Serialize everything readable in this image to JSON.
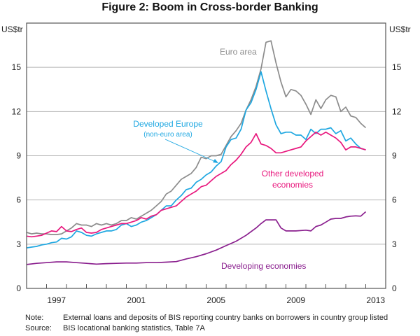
{
  "chart_data": {
    "type": "line",
    "title": "Figure 2: Boom in Cross-border Banking",
    "xlabel": "",
    "ylabel_left": "US$tr",
    "ylabel_right": "US$tr",
    "xlim": [
      1996,
      2014
    ],
    "ylim": [
      0,
      18
    ],
    "x_ticks": [
      "1997",
      "2001",
      "2005",
      "2009",
      "2013"
    ],
    "y_ticks": [
      "0",
      "3",
      "6",
      "9",
      "12",
      "15"
    ],
    "grid": true,
    "series": [
      {
        "name": "Euro area",
        "color": "#8c8c8c",
        "label": "Euro area",
        "x": [
          1996.0,
          1996.25,
          1996.5,
          1996.75,
          1997.0,
          1997.25,
          1997.5,
          1997.75,
          1998.0,
          1998.25,
          1998.5,
          1998.75,
          1999.0,
          1999.25,
          1999.5,
          1999.75,
          2000.0,
          2000.25,
          2000.5,
          2000.75,
          2001.0,
          2001.25,
          2001.5,
          2001.75,
          2002.0,
          2002.25,
          2002.5,
          2002.75,
          2003.0,
          2003.25,
          2003.5,
          2003.75,
          2004.0,
          2004.25,
          2004.5,
          2004.75,
          2005.0,
          2005.25,
          2005.5,
          2005.75,
          2006.0,
          2006.25,
          2006.5,
          2006.75,
          2007.0,
          2007.25,
          2007.5,
          2007.75,
          2008.0,
          2008.25,
          2008.5,
          2008.75,
          2009.0,
          2009.25,
          2009.5,
          2009.75,
          2010.0,
          2010.25,
          2010.5,
          2010.75,
          2011.0,
          2011.25,
          2011.5,
          2011.75,
          2012.0,
          2012.25,
          2012.5,
          2012.75,
          2013.0
        ],
        "values": [
          3.8,
          3.7,
          3.75,
          3.7,
          3.7,
          3.65,
          3.65,
          3.7,
          3.9,
          4.1,
          4.4,
          4.3,
          4.3,
          4.2,
          4.4,
          4.3,
          4.4,
          4.3,
          4.4,
          4.6,
          4.6,
          4.8,
          4.7,
          4.9,
          5.1,
          5.3,
          5.6,
          5.9,
          6.4,
          6.6,
          7.0,
          7.4,
          7.6,
          7.8,
          8.2,
          8.9,
          8.8,
          9.0,
          9.0,
          9.1,
          9.7,
          10.3,
          10.7,
          11.2,
          12.1,
          12.8,
          13.7,
          14.9,
          16.7,
          16.8,
          15.3,
          14.0,
          13.0,
          13.5,
          13.4,
          13.1,
          12.5,
          11.8,
          12.8,
          12.2,
          12.8,
          13.1,
          13.0,
          12.0,
          12.3,
          11.7,
          11.6,
          11.2,
          10.9
        ]
      },
      {
        "name": "Developed Europe (non-euro area)",
        "color": "#1ea7e1",
        "label": "Developed Europe",
        "sublabel": "(non-euro area)",
        "x": [
          1996.0,
          1996.25,
          1996.5,
          1996.75,
          1997.0,
          1997.25,
          1997.5,
          1997.75,
          1998.0,
          1998.25,
          1998.5,
          1998.75,
          1999.0,
          1999.25,
          1999.5,
          1999.75,
          2000.0,
          2000.25,
          2000.5,
          2000.75,
          2001.0,
          2001.25,
          2001.5,
          2001.75,
          2002.0,
          2002.25,
          2002.5,
          2002.75,
          2003.0,
          2003.25,
          2003.5,
          2003.75,
          2004.0,
          2004.25,
          2004.5,
          2004.75,
          2005.0,
          2005.25,
          2005.5,
          2005.75,
          2006.0,
          2006.25,
          2006.5,
          2006.75,
          2007.0,
          2007.25,
          2007.5,
          2007.75,
          2008.0,
          2008.25,
          2008.5,
          2008.75,
          2009.0,
          2009.25,
          2009.5,
          2009.75,
          2010.0,
          2010.25,
          2010.5,
          2010.75,
          2011.0,
          2011.25,
          2011.5,
          2011.75,
          2012.0,
          2012.25,
          2012.5,
          2012.75,
          2013.0
        ],
        "values": [
          2.75,
          2.8,
          2.85,
          2.95,
          3.0,
          3.1,
          3.15,
          3.4,
          3.35,
          3.5,
          3.9,
          3.8,
          3.6,
          3.55,
          3.7,
          3.8,
          3.9,
          3.9,
          4.0,
          4.3,
          4.4,
          4.2,
          4.3,
          4.5,
          4.6,
          4.8,
          5.0,
          5.3,
          5.6,
          5.6,
          6.0,
          6.3,
          6.7,
          6.8,
          7.2,
          7.4,
          7.7,
          7.9,
          8.3,
          8.6,
          9.6,
          10.1,
          10.2,
          10.8,
          12.1,
          12.6,
          13.5,
          14.7,
          13.4,
          12.2,
          11.1,
          10.5,
          10.6,
          10.6,
          10.4,
          10.4,
          10.1,
          10.8,
          10.5,
          10.8,
          10.8,
          10.9,
          10.5,
          10.7,
          10.0,
          10.2,
          9.8,
          9.5,
          9.4
        ]
      },
      {
        "name": "Other developed economies",
        "color": "#e8177d",
        "label": "Other developed",
        "sublabel": "economies",
        "x": [
          1996.0,
          1996.25,
          1996.5,
          1996.75,
          1997.0,
          1997.25,
          1997.5,
          1997.75,
          1998.0,
          1998.25,
          1998.5,
          1998.75,
          1999.0,
          1999.25,
          1999.5,
          1999.75,
          2000.0,
          2000.25,
          2000.5,
          2000.75,
          2001.0,
          2001.25,
          2001.5,
          2001.75,
          2002.0,
          2002.25,
          2002.5,
          2002.75,
          2003.0,
          2003.25,
          2003.5,
          2003.75,
          2004.0,
          2004.25,
          2004.5,
          2004.75,
          2005.0,
          2005.25,
          2005.5,
          2005.75,
          2006.0,
          2006.25,
          2006.5,
          2006.75,
          2007.0,
          2007.25,
          2007.5,
          2007.75,
          2008.0,
          2008.25,
          2008.5,
          2008.75,
          2009.0,
          2009.25,
          2009.5,
          2009.75,
          2010.0,
          2010.25,
          2010.5,
          2010.75,
          2011.0,
          2011.25,
          2011.5,
          2011.75,
          2012.0,
          2012.25,
          2012.5,
          2012.75,
          2013.0
        ],
        "values": [
          3.55,
          3.5,
          3.55,
          3.6,
          3.75,
          3.9,
          3.85,
          4.2,
          3.9,
          3.85,
          4.0,
          4.1,
          3.8,
          3.75,
          3.8,
          4.0,
          4.1,
          4.2,
          4.3,
          4.4,
          4.4,
          4.5,
          4.6,
          4.8,
          4.7,
          4.9,
          5.0,
          5.3,
          5.4,
          5.5,
          5.6,
          5.9,
          6.2,
          6.4,
          6.6,
          6.9,
          7.0,
          7.3,
          7.6,
          7.8,
          8.0,
          8.4,
          8.7,
          9.1,
          9.6,
          9.9,
          10.5,
          9.8,
          9.7,
          9.5,
          9.2,
          9.2,
          9.3,
          9.4,
          9.5,
          9.6,
          10.0,
          10.3,
          10.6,
          10.4,
          10.6,
          10.4,
          10.2,
          9.9,
          9.4,
          9.6,
          9.6,
          9.5,
          9.4
        ]
      },
      {
        "name": "Developing economies",
        "color": "#8a1f8e",
        "label": "Developing economies",
        "x": [
          1996.0,
          1996.5,
          1997.0,
          1997.5,
          1998.0,
          1998.5,
          1999.0,
          1999.5,
          2000.0,
          2000.5,
          2001.0,
          2001.5,
          2002.0,
          2002.5,
          2003.0,
          2003.5,
          2004.0,
          2004.5,
          2005.0,
          2005.5,
          2006.0,
          2006.5,
          2007.0,
          2007.25,
          2007.5,
          2007.75,
          2008.0,
          2008.25,
          2008.5,
          2008.75,
          2009.0,
          2009.5,
          2010.0,
          2010.25,
          2010.5,
          2010.75,
          2011.0,
          2011.25,
          2011.5,
          2011.75,
          2012.0,
          2012.25,
          2012.5,
          2012.75,
          2013.0
        ],
        "values": [
          1.62,
          1.7,
          1.75,
          1.8,
          1.8,
          1.75,
          1.7,
          1.65,
          1.68,
          1.7,
          1.72,
          1.72,
          1.75,
          1.75,
          1.78,
          1.82,
          2.0,
          2.15,
          2.35,
          2.6,
          2.9,
          3.2,
          3.6,
          3.85,
          4.1,
          4.4,
          4.65,
          4.65,
          4.65,
          4.1,
          3.9,
          3.9,
          3.95,
          3.9,
          4.2,
          4.3,
          4.5,
          4.7,
          4.75,
          4.75,
          4.85,
          4.9,
          4.92,
          4.9,
          5.2
        ]
      }
    ],
    "annotations": [
      {
        "series": "Euro area",
        "text": "Euro area"
      },
      {
        "series": "Developed Europe (non-euro area)",
        "text": "Developed Europe",
        "subtext": "(non-euro area)",
        "arrow": true
      },
      {
        "series": "Other developed economies",
        "text": "Other developed",
        "subtext": "economies"
      },
      {
        "series": "Developing economies",
        "text": "Developing economies"
      }
    ]
  },
  "notes": {
    "note_label": "Note:",
    "note_text": "External loans and deposits of BIS reporting country banks on borrowers in country group listed",
    "source_label": "Source:",
    "source_text": "BIS locational banking statistics, Table 7A"
  }
}
